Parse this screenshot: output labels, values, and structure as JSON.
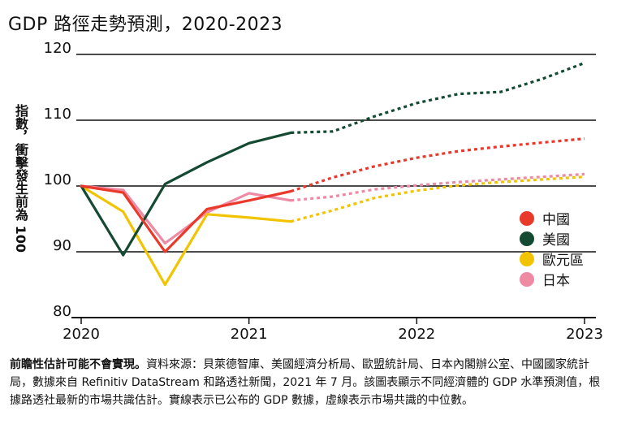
{
  "chart_data": {
    "type": "line",
    "title": "GDP 路徑走勢預測，2020-2023",
    "ylabel": "指數，衝擊發生前為 100",
    "ylim": [
      80,
      120
    ],
    "yticks": [
      80,
      90,
      100,
      110,
      120
    ],
    "xlim": [
      2020.0,
      2023.0
    ],
    "xticks": [
      2020,
      2021,
      2022,
      2023
    ],
    "grid": "horizontal",
    "legend_position": "right",
    "series": [
      {
        "name": "中國",
        "color": "#e8392a",
        "actual": [
          [
            2020.0,
            100
          ],
          [
            2020.25,
            99
          ],
          [
            2020.5,
            90
          ],
          [
            2020.75,
            96.5
          ],
          [
            2021.0,
            97.8
          ],
          [
            2021.25,
            99.2
          ]
        ],
        "forecast": [
          [
            2021.25,
            99.2
          ],
          [
            2021.5,
            101.3
          ],
          [
            2021.75,
            103
          ],
          [
            2022.0,
            104.3
          ],
          [
            2022.25,
            105.3
          ],
          [
            2022.5,
            106
          ],
          [
            2022.75,
            106.6
          ],
          [
            2023.0,
            107.2
          ]
        ]
      },
      {
        "name": "美國",
        "color": "#154a32",
        "actual": [
          [
            2020.0,
            100
          ],
          [
            2020.25,
            89.5
          ],
          [
            2020.5,
            100.3
          ],
          [
            2020.75,
            103.6
          ],
          [
            2021.0,
            106.5
          ],
          [
            2021.25,
            108.1
          ]
        ],
        "forecast": [
          [
            2021.25,
            108.1
          ],
          [
            2021.5,
            108.3
          ],
          [
            2021.75,
            110.6
          ],
          [
            2022.0,
            112.6
          ],
          [
            2022.25,
            114
          ],
          [
            2022.5,
            114.3
          ],
          [
            2022.75,
            116.3
          ],
          [
            2023.0,
            118.7
          ]
        ]
      },
      {
        "name": "歐元區",
        "color": "#f2c400",
        "actual": [
          [
            2020.0,
            100
          ],
          [
            2020.25,
            96.1
          ],
          [
            2020.5,
            85
          ],
          [
            2020.75,
            95.7
          ],
          [
            2021.0,
            95.2
          ],
          [
            2021.25,
            94.6
          ]
        ],
        "forecast": [
          [
            2021.25,
            94.6
          ],
          [
            2021.5,
            96.3
          ],
          [
            2021.75,
            98.2
          ],
          [
            2022.0,
            99.3
          ],
          [
            2022.25,
            100.1
          ],
          [
            2022.5,
            100.6
          ],
          [
            2022.75,
            101
          ],
          [
            2023.0,
            101.4
          ]
        ]
      },
      {
        "name": "日本",
        "color": "#ef8aa5",
        "actual": [
          [
            2020.0,
            100
          ],
          [
            2020.25,
            99.4
          ],
          [
            2020.5,
            91.3
          ],
          [
            2020.75,
            96
          ],
          [
            2021.0,
            98.9
          ],
          [
            2021.25,
            97.8
          ]
        ],
        "forecast": [
          [
            2021.25,
            97.8
          ],
          [
            2021.5,
            98.4
          ],
          [
            2021.75,
            99.5
          ],
          [
            2022.0,
            100.1
          ],
          [
            2022.25,
            100.6
          ],
          [
            2022.5,
            101
          ],
          [
            2022.75,
            101.4
          ],
          [
            2023.0,
            101.8
          ]
        ]
      }
    ],
    "footnote_lead": "前瞻性估計可能不會實現。",
    "footnote": "資料來源：貝萊德智庫、美國經濟分析局、歐盟統計局、日本內閣辦公室、中國國家統計局，數據來自 Refinitiv DataStream 和路透社新聞，2021 年 7 月。該圖表顯示不同經濟體的 GDP 水準預測值，根據路透社最新的市場共識估計。實線表示已公布的 GDP 數據，虛線表示市場共識的中位數。"
  }
}
